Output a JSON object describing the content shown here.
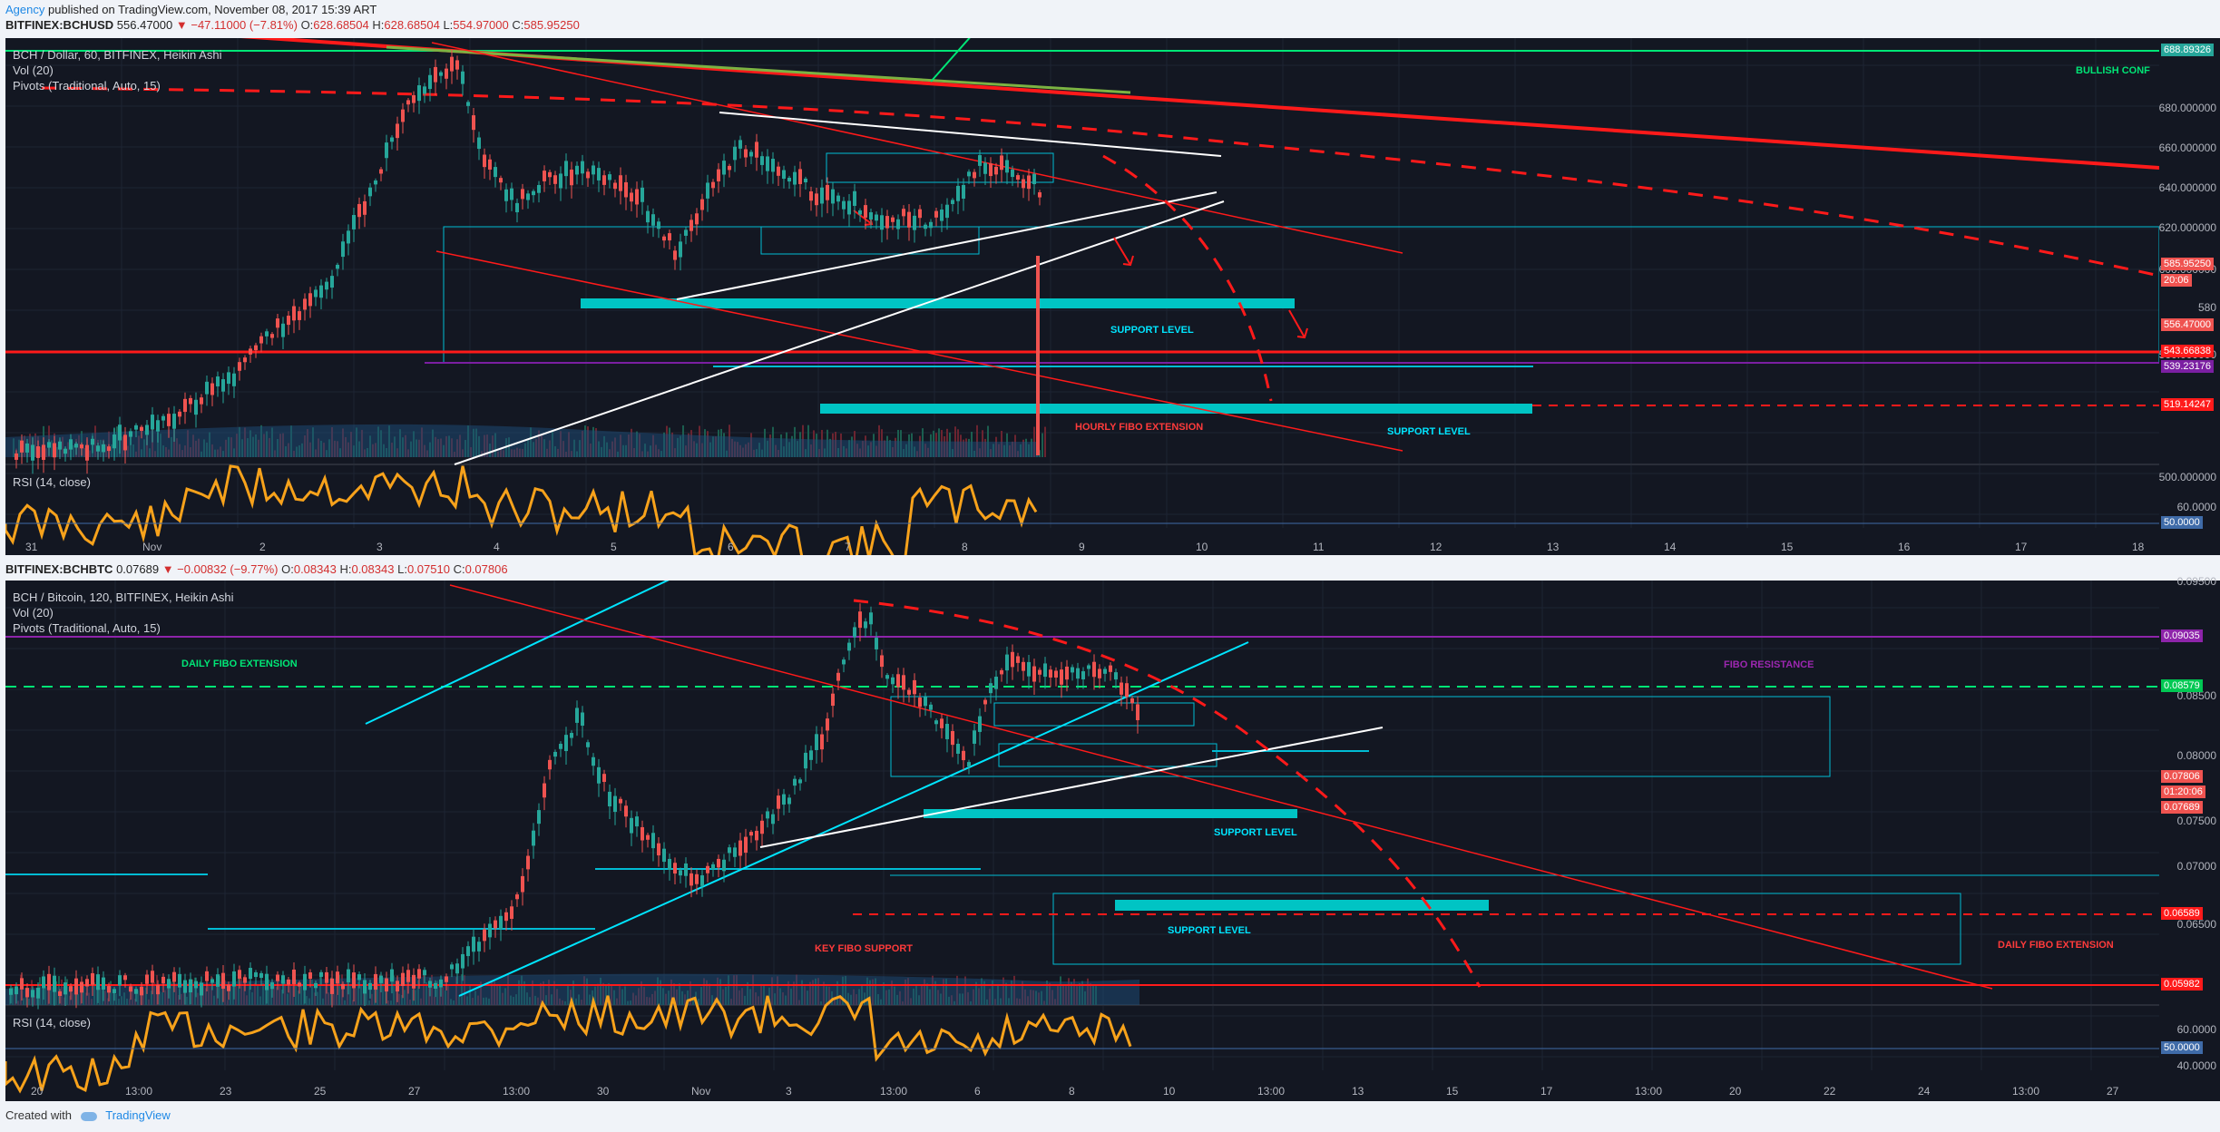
{
  "header": {
    "author": "Agency",
    "published": " published on TradingView.com, November 08, 2017 15:39 ART"
  },
  "chart1": {
    "symbol": "BITFINEX:BCHUSD",
    "last": "556.47000",
    "change": "▼ −47.11000 (−7.81%)",
    "o_label": "O:",
    "o": "628.68504",
    "h_label": "H:",
    "h": "628.68504",
    "l_label": "L:",
    "l": "554.97000",
    "c_label": "C:",
    "c": "585.95250",
    "legend_title": "BCH / Dollar, 60, BITFINEX, Heikin Ashi",
    "vol": "Vol (20)",
    "pivots": "Pivots (Traditional, Auto, 15)",
    "rsi": "RSI (14, close)",
    "price_labels": [
      "680.000000",
      "660.000000",
      "640.000000",
      "620.000000",
      "600.000000",
      "580",
      "560.000000",
      "500.000000"
    ],
    "rsi_label": "60.0000",
    "tags": [
      "688.89326",
      "585.95250",
      "20:06",
      "556.47000",
      "543.66838",
      "539.23176",
      "519.14247",
      "50.0000"
    ],
    "times": [
      "31",
      "Nov",
      "2",
      "3",
      "4",
      "5",
      "6",
      "7",
      "8",
      "9",
      "10",
      "11",
      "12",
      "13",
      "14",
      "15",
      "16",
      "17",
      "18"
    ],
    "notes": {
      "bullish": "BULLISH CONF",
      "support1": "SUPPORT LEVEL",
      "support2": "SUPPORT LEVEL",
      "fibo": "HOURLY FIBO EXTENSION"
    }
  },
  "chart2": {
    "symbol": "BITFINEX:BCHBTC",
    "last": "0.07689",
    "change": "▼ −0.00832 (−9.77%)",
    "o_label": "O:",
    "o": "0.08343",
    "h_label": "H:",
    "h": "0.08343",
    "l_label": "L:",
    "l": "0.07510",
    "c_label": "C:",
    "c": "0.07806",
    "legend_title": "BCH / Bitcoin, 120, BITFINEX, Heikin Ashi",
    "vol": "Vol (20)",
    "pivots": "Pivots (Traditional, Auto, 15)",
    "rsi": "RSI (14, close)",
    "price_labels": [
      "0.09500",
      "0.08500",
      "0.08000",
      "0.07500",
      "0.07000",
      "0.06500"
    ],
    "rsi_labels": [
      "60.0000",
      "40.0000"
    ],
    "tags": [
      "0.09035",
      "0.08579",
      "0.07806",
      "01:20:06",
      "0.07689",
      "0.06589",
      "0.05982",
      "50.0000"
    ],
    "times": [
      "20",
      "13:00",
      "23",
      "25",
      "27",
      "13:00",
      "30",
      "Nov",
      "3",
      "13:00",
      "6",
      "8",
      "10",
      "13:00",
      "13",
      "15",
      "17",
      "13:00",
      "20",
      "22",
      "24",
      "13:00",
      "27"
    ],
    "notes": {
      "daily_fibo": "DAILY FIBO EXTENSION",
      "fibo_res": "FIBO RESISTANCE",
      "support1": "SUPPORT LEVEL",
      "support2": "SUPPORT LEVEL",
      "key_fibo": "KEY FIBO SUPPORT",
      "daily_fibo2": "DAILY FIBO EXTENSION"
    }
  },
  "footer": {
    "created": "Created with",
    "brand": "TradingView"
  },
  "colors": {
    "bg": "#131722",
    "up": "#26a69a",
    "down": "#ef5350",
    "rsi": "#f7a21b",
    "cyan": "#00bcd4",
    "red": "#ff1a1a",
    "green": "#00e676",
    "purple": "#7b1fa2"
  }
}
